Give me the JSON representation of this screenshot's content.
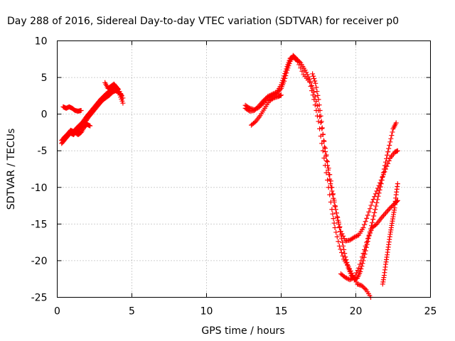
{
  "chart_data": {
    "type": "scatter",
    "title": "Day 288 of 2016, Sidereal Day-to-day VTEC variation (SDTVAR) for receiver p0",
    "xlabel": "GPS time / hours",
    "ylabel": "SDTVAR / TECUs",
    "xlim": [
      0,
      25
    ],
    "ylim": [
      -25,
      10
    ],
    "xticks": [
      0,
      5,
      10,
      15,
      20,
      25
    ],
    "yticks": [
      -25,
      -20,
      -15,
      -10,
      -5,
      0,
      5,
      10
    ],
    "grid": true,
    "marker": "plus",
    "color": "#ff0000",
    "series": [
      {
        "points": [
          [
            0.3,
            -4.0
          ],
          [
            0.5,
            -3.5
          ],
          [
            0.7,
            -3.0
          ],
          [
            0.9,
            -2.6
          ],
          [
            1.1,
            -2.8
          ],
          [
            1.3,
            -2.3
          ],
          [
            1.5,
            -2.0
          ],
          [
            1.7,
            -1.6
          ],
          [
            1.9,
            -1.0
          ],
          [
            2.1,
            -0.4
          ],
          [
            2.3,
            0.1
          ],
          [
            2.5,
            0.6
          ],
          [
            2.7,
            1.1
          ],
          [
            2.9,
            1.6
          ],
          [
            3.1,
            2.0
          ],
          [
            3.3,
            2.3
          ],
          [
            3.5,
            2.6
          ],
          [
            3.7,
            3.0
          ],
          [
            3.9,
            3.2
          ],
          [
            4.1,
            3.0
          ],
          [
            4.3,
            2.6
          ]
        ]
      },
      {
        "points": [
          [
            0.3,
            -3.6
          ],
          [
            0.5,
            -3.1
          ],
          [
            0.7,
            -2.7
          ],
          [
            0.9,
            -2.2
          ],
          [
            1.1,
            -2.4
          ],
          [
            1.3,
            -1.9
          ],
          [
            1.5,
            -1.5
          ],
          [
            1.7,
            -1.1
          ],
          [
            1.9,
            -0.5
          ],
          [
            2.1,
            0.0
          ],
          [
            2.3,
            0.5
          ],
          [
            2.5,
            1.0
          ],
          [
            2.7,
            1.5
          ],
          [
            2.9,
            2.0
          ],
          [
            3.1,
            2.4
          ],
          [
            3.3,
            2.8
          ],
          [
            3.5,
            3.1
          ],
          [
            3.7,
            3.5
          ],
          [
            3.9,
            3.8
          ],
          [
            4.1,
            3.4
          ],
          [
            4.4,
            2.2
          ]
        ]
      },
      {
        "points": [
          [
            0.4,
            1.0
          ],
          [
            0.6,
            0.8
          ],
          [
            0.8,
            1.0
          ],
          [
            1.0,
            0.8
          ],
          [
            1.2,
            0.5
          ],
          [
            1.4,
            0.4
          ],
          [
            1.6,
            0.5
          ]
        ]
      },
      {
        "points": [
          [
            1.2,
            -2.5
          ],
          [
            1.4,
            -2.8
          ],
          [
            1.6,
            -2.5
          ],
          [
            1.8,
            -1.8
          ],
          [
            2.0,
            -1.4
          ],
          [
            2.2,
            -1.6
          ]
        ]
      },
      {
        "points": [
          [
            3.2,
            4.3
          ],
          [
            3.4,
            3.5
          ],
          [
            3.6,
            3.8
          ],
          [
            3.8,
            4.1
          ],
          [
            4.0,
            3.6
          ],
          [
            4.2,
            2.6
          ],
          [
            4.4,
            1.5
          ]
        ]
      },
      {
        "points": [
          [
            12.6,
            1.2
          ],
          [
            12.9,
            0.8
          ],
          [
            13.2,
            0.6
          ],
          [
            13.5,
            0.9
          ],
          [
            13.8,
            1.5
          ],
          [
            14.1,
            2.2
          ],
          [
            14.4,
            2.6
          ],
          [
            14.7,
            2.8
          ],
          [
            15.0,
            3.5
          ],
          [
            15.2,
            4.5
          ],
          [
            15.4,
            6.0
          ],
          [
            15.6,
            7.2
          ],
          [
            15.8,
            8.0
          ],
          [
            16.0,
            7.6
          ],
          [
            16.3,
            7.0
          ],
          [
            16.6,
            6.0
          ],
          [
            16.9,
            4.8
          ],
          [
            17.2,
            3.0
          ],
          [
            17.5,
            0.5
          ],
          [
            17.8,
            -2.8
          ],
          [
            18.1,
            -6.5
          ],
          [
            18.4,
            -10.0
          ],
          [
            18.7,
            -13.5
          ],
          [
            19.0,
            -16.0
          ],
          [
            19.3,
            -17.3
          ],
          [
            19.6,
            -17.2
          ],
          [
            19.9,
            -16.8
          ],
          [
            20.2,
            -16.5
          ],
          [
            20.5,
            -15.5
          ],
          [
            20.8,
            -13.8
          ],
          [
            21.1,
            -12.0
          ],
          [
            21.4,
            -10.5
          ],
          [
            21.7,
            -9.0
          ],
          [
            22.0,
            -7.5
          ],
          [
            22.3,
            -6.0
          ],
          [
            22.6,
            -5.2
          ],
          [
            22.8,
            -5.0
          ]
        ]
      },
      {
        "points": [
          [
            12.6,
            0.8
          ],
          [
            12.9,
            0.4
          ],
          [
            13.2,
            0.5
          ],
          [
            13.5,
            1.1
          ],
          [
            13.8,
            1.8
          ],
          [
            14.1,
            2.4
          ],
          [
            14.4,
            2.7
          ],
          [
            14.7,
            3.0
          ],
          [
            15.0,
            4.0
          ],
          [
            15.2,
            5.2
          ],
          [
            15.4,
            6.5
          ],
          [
            15.6,
            7.6
          ],
          [
            15.8,
            7.8
          ],
          [
            16.1,
            7.2
          ],
          [
            16.5,
            5.4
          ],
          [
            16.9,
            4.4
          ],
          [
            17.2,
            2.0
          ],
          [
            17.5,
            -1.0
          ],
          [
            17.8,
            -5.0
          ],
          [
            18.1,
            -9.0
          ],
          [
            18.4,
            -13.0
          ],
          [
            18.6,
            -15.5
          ],
          [
            18.9,
            -18.0
          ],
          [
            19.2,
            -19.8
          ],
          [
            19.5,
            -20.8
          ],
          [
            19.8,
            -22.0
          ],
          [
            20.1,
            -23.2
          ],
          [
            20.4,
            -23.4
          ],
          [
            20.7,
            -24.0
          ],
          [
            21.0,
            -25.0
          ]
        ]
      },
      {
        "points": [
          [
            13.0,
            -1.5
          ],
          [
            13.3,
            -1.0
          ],
          [
            13.6,
            -0.2
          ],
          [
            13.9,
            0.8
          ],
          [
            14.2,
            1.8
          ],
          [
            14.5,
            2.2
          ],
          [
            14.8,
            2.4
          ],
          [
            15.0,
            2.6
          ]
        ]
      },
      {
        "points": [
          [
            17.1,
            5.5
          ],
          [
            17.3,
            4.2
          ],
          [
            17.5,
            2.0
          ],
          [
            17.7,
            -1.0
          ],
          [
            17.9,
            -4.5
          ],
          [
            18.1,
            -7.0
          ],
          [
            18.3,
            -9.5
          ],
          [
            18.5,
            -11.5
          ],
          [
            18.7,
            -13.5
          ],
          [
            18.9,
            -15.5
          ],
          [
            19.1,
            -17.5
          ],
          [
            19.3,
            -19.5
          ],
          [
            19.5,
            -21.0
          ],
          [
            19.7,
            -22.0
          ],
          [
            19.9,
            -22.5
          ],
          [
            20.1,
            -22.4
          ],
          [
            20.3,
            -21.5
          ],
          [
            20.5,
            -20.0
          ],
          [
            20.7,
            -18.2
          ],
          [
            20.9,
            -16.5
          ],
          [
            21.1,
            -14.8
          ],
          [
            21.3,
            -13.0
          ],
          [
            21.5,
            -11.2
          ],
          [
            21.7,
            -9.5
          ],
          [
            21.9,
            -7.5
          ],
          [
            22.1,
            -5.6
          ],
          [
            22.3,
            -3.8
          ],
          [
            22.5,
            -2.0
          ],
          [
            22.7,
            -1.2
          ]
        ]
      },
      {
        "points": [
          [
            19.0,
            -21.8
          ],
          [
            19.3,
            -22.3
          ],
          [
            19.6,
            -22.6
          ],
          [
            19.9,
            -22.3
          ],
          [
            20.2,
            -21.0
          ],
          [
            20.5,
            -19.0
          ],
          [
            20.8,
            -17.0
          ],
          [
            21.1,
            -15.5
          ],
          [
            21.4,
            -15.0
          ],
          [
            21.7,
            -14.2
          ],
          [
            22.0,
            -13.5
          ],
          [
            22.3,
            -12.8
          ],
          [
            22.6,
            -12.2
          ],
          [
            22.8,
            -11.8
          ]
        ]
      },
      {
        "points": [
          [
            21.8,
            -23.2
          ],
          [
            21.9,
            -22.0
          ],
          [
            22.0,
            -20.5
          ],
          [
            22.1,
            -19.2
          ],
          [
            22.2,
            -17.8
          ],
          [
            22.3,
            -16.4
          ],
          [
            22.4,
            -15.2
          ],
          [
            22.5,
            -14.0
          ],
          [
            22.6,
            -12.8
          ],
          [
            22.7,
            -11.0
          ],
          [
            22.8,
            -9.5
          ]
        ]
      }
    ]
  }
}
